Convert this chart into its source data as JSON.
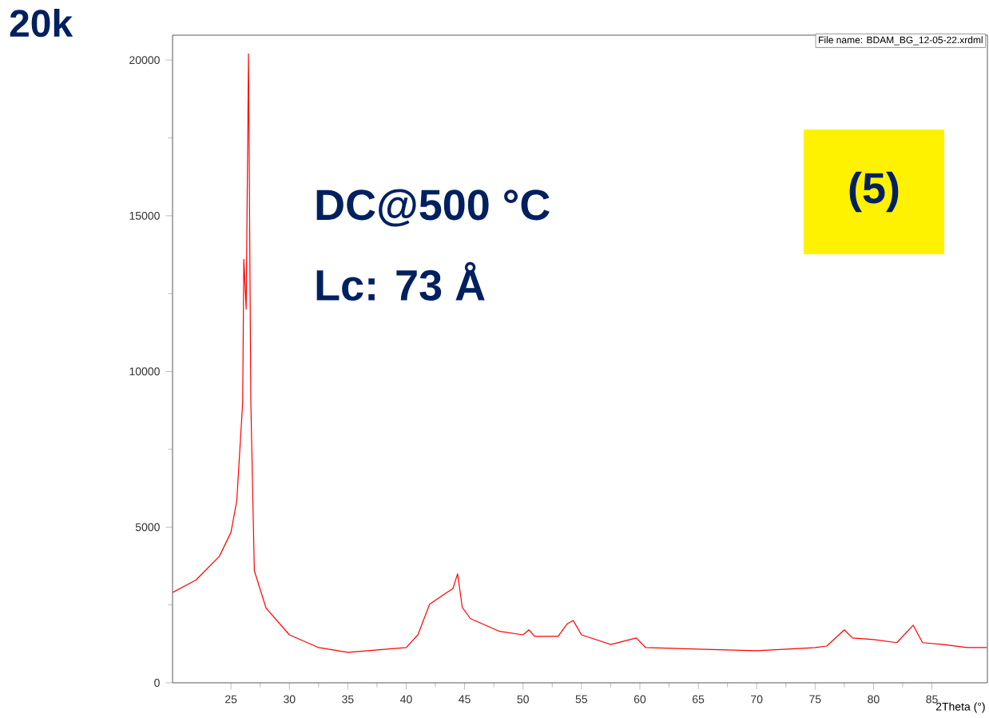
{
  "chart_data": {
    "type": "line",
    "xlabel": "2Theta (°)",
    "annotations": [
      "20k",
      "DC@500 °C",
      "Lc: 73 Å",
      "(5)",
      "File name:  BDAM_BG_12-05-22.xrdml"
    ],
    "x": [
      20,
      22,
      24,
      25,
      25.5,
      26,
      26.1,
      26.3,
      26.5,
      26.7,
      27,
      28,
      30,
      32.5,
      35,
      40,
      41,
      42,
      43,
      44,
      44.4,
      44.8,
      45.5,
      48,
      50,
      50.5,
      51,
      53,
      53.8,
      54.3,
      55,
      57.5,
      59.7,
      60.5,
      65,
      70,
      75,
      76,
      77.5,
      78.2,
      80,
      82,
      83.4,
      84.2,
      86,
      88,
      89.7
    ],
    "series": [
      {
        "color": "#ff0000",
        "values": [
          2900,
          3300,
          4060,
          4830,
          5860,
          9000,
          13600,
          12000,
          20200,
          9000,
          3600,
          2400,
          1540,
          1130,
          980,
          1130,
          1540,
          2520,
          2780,
          3030,
          3500,
          2420,
          2060,
          1650,
          1540,
          1700,
          1490,
          1490,
          1900,
          2000,
          1540,
          1230,
          1440,
          1130,
          1080,
          1030,
          1130,
          1180,
          1700,
          1440,
          1390,
          1290,
          1850,
          1290,
          1230,
          1130,
          1130
        ]
      }
    ],
    "xlim": [
      20,
      89.75
    ],
    "ylim": [
      0,
      20800
    ],
    "xticks": [
      25,
      30,
      35,
      40,
      45,
      50,
      55,
      60,
      65,
      70,
      75,
      80,
      85
    ],
    "yticks": [
      0,
      5000,
      10000,
      15000,
      20000
    ],
    "grid": false,
    "marker": "none",
    "line_style": "solid"
  }
}
